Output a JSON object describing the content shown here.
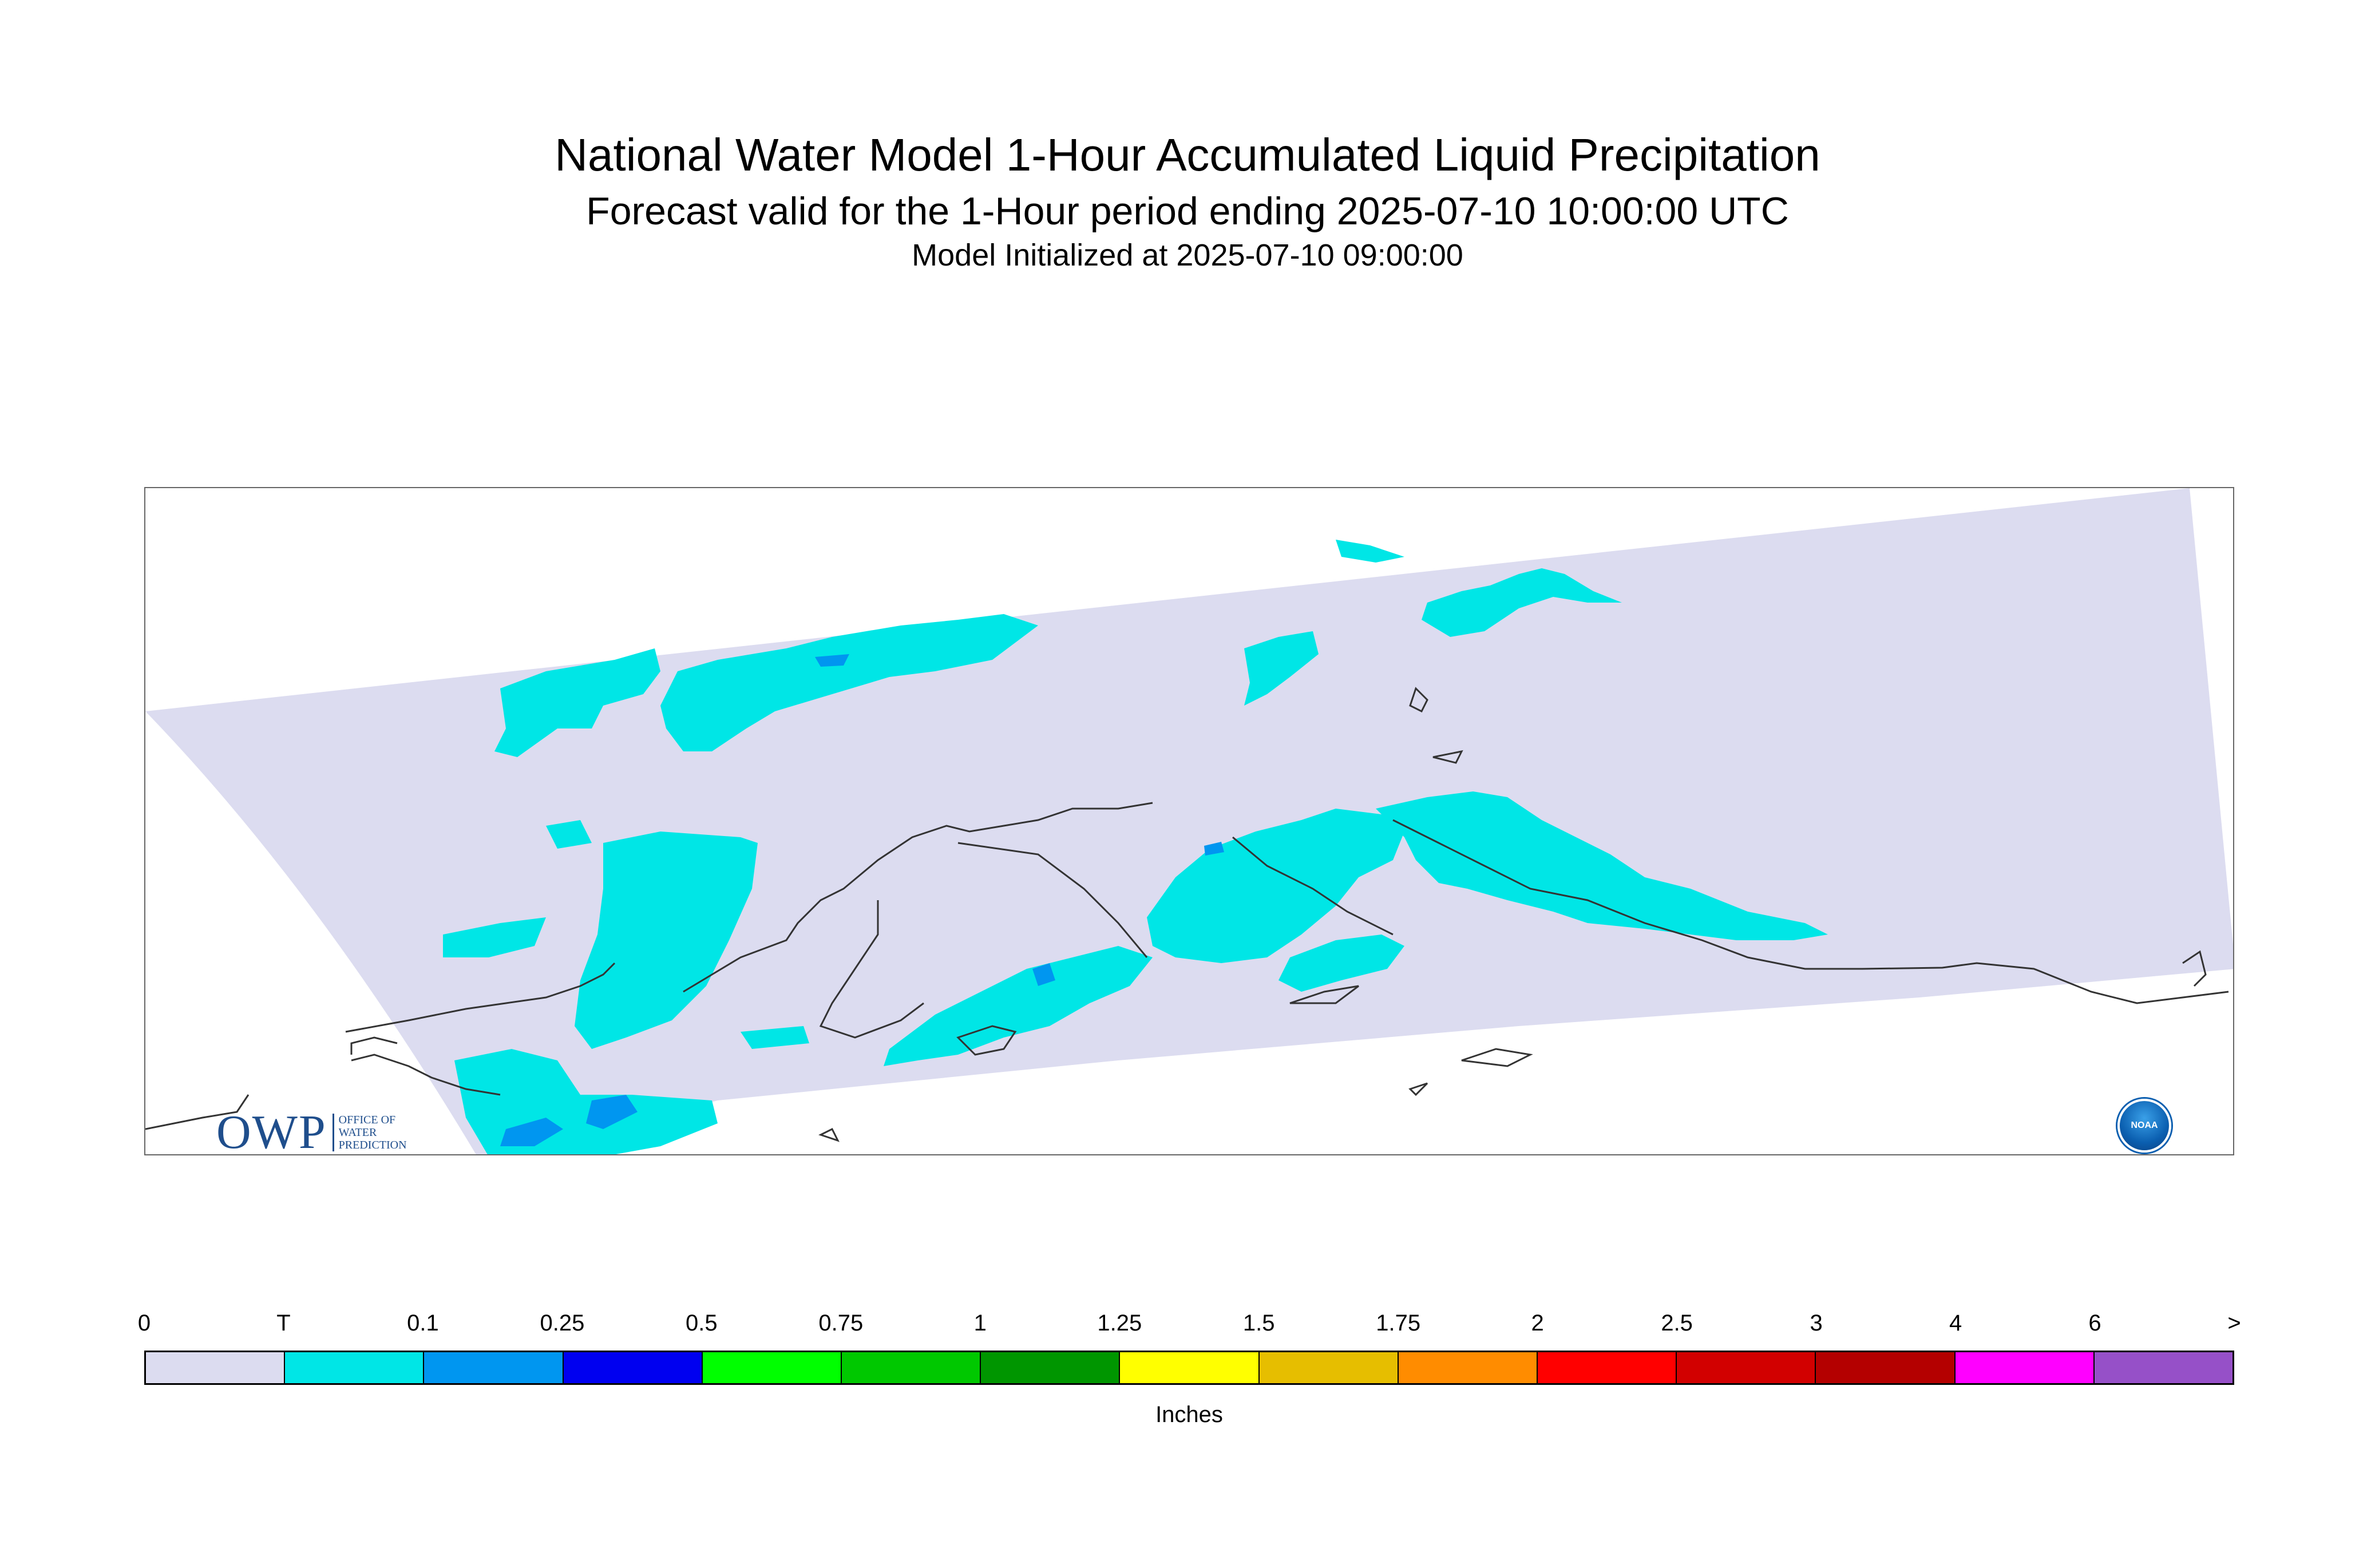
{
  "title": "National Water Model 1-Hour Accumulated Liquid Precipitation",
  "subtitle": "Forecast valid for the 1-Hour period ending 2025-07-10 10:00:00 UTC",
  "init_line": "Model Initialized at 2025-07-10 09:00:00",
  "logos": {
    "owp_mark": "OWP",
    "owp_text": [
      "OFFICE OF",
      "WATER",
      "PREDICTION"
    ],
    "noaa_mark": "NOAA"
  },
  "legend": {
    "units": "Inches",
    "ticks": [
      "0",
      "T",
      "0.1",
      "0.25",
      "0.5",
      "0.75",
      "1",
      "1.25",
      "1.5",
      "1.75",
      "2",
      "2.5",
      "3",
      "4",
      "6",
      ">"
    ],
    "colors": [
      "#dcdcf0",
      "#00e6e6",
      "#0096f0",
      "#0000f0",
      "#00ff00",
      "#00c800",
      "#009600",
      "#ffff00",
      "#e6be00",
      "#ff8c00",
      "#ff0000",
      "#d20000",
      "#b40000",
      "#ff00ff",
      "#9650c8"
    ]
  },
  "colors": {
    "domain_fill": "#dcdcf0",
    "trace": "#00e6e6",
    "light": "#0096f0",
    "coast": "#333333"
  }
}
